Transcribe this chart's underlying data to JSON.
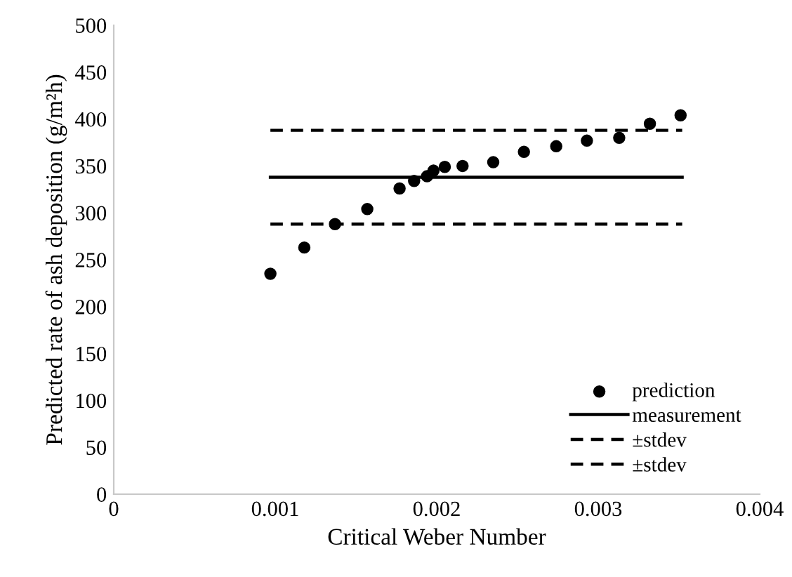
{
  "chart_data": {
    "type": "scatter",
    "xlabel": "Critical Weber Number",
    "ylabel": "Predicted rate of ash deposition (g/m²h)",
    "xlim": [
      0,
      0.004
    ],
    "xticks": [
      0,
      0.001,
      0.002,
      0.003,
      0.004
    ],
    "ylim": [
      0,
      500
    ],
    "yticks": [
      0,
      50,
      100,
      150,
      200,
      250,
      300,
      350,
      400,
      450,
      500
    ],
    "grid": false,
    "legend": "bottom right",
    "series": [
      {
        "name": "prediction",
        "marker": "circle",
        "color": "#000000",
        "x": [
          0.00097,
          0.00118,
          0.00137,
          0.00157,
          0.00177,
          0.00186,
          0.00194,
          0.00198,
          0.00205,
          0.00216,
          0.00235,
          0.00254,
          0.00274,
          0.00293,
          0.00313,
          0.00332,
          0.00351
        ],
        "values": [
          235,
          263,
          288,
          304,
          326,
          334,
          339,
          345,
          349,
          350,
          354,
          365,
          371,
          377,
          380,
          395,
          404
        ]
      },
      {
        "name": "measurement",
        "type": "line",
        "line_style": "solid",
        "marker": "none",
        "color": "#000000",
        "x": [
          0.00097,
          0.00352
        ],
        "values": [
          338,
          338
        ]
      },
      {
        "name": "±stdev",
        "type": "line",
        "line_style": "dashed",
        "marker": "none",
        "color": "#000000",
        "x": [
          0.00097,
          0.00352
        ],
        "values": [
          388,
          388
        ]
      },
      {
        "name": "±stdev",
        "type": "line",
        "line_style": "dashed",
        "marker": "none",
        "color": "#000000",
        "x": [
          0.00097,
          0.00352
        ],
        "values": [
          288,
          288
        ]
      }
    ]
  }
}
